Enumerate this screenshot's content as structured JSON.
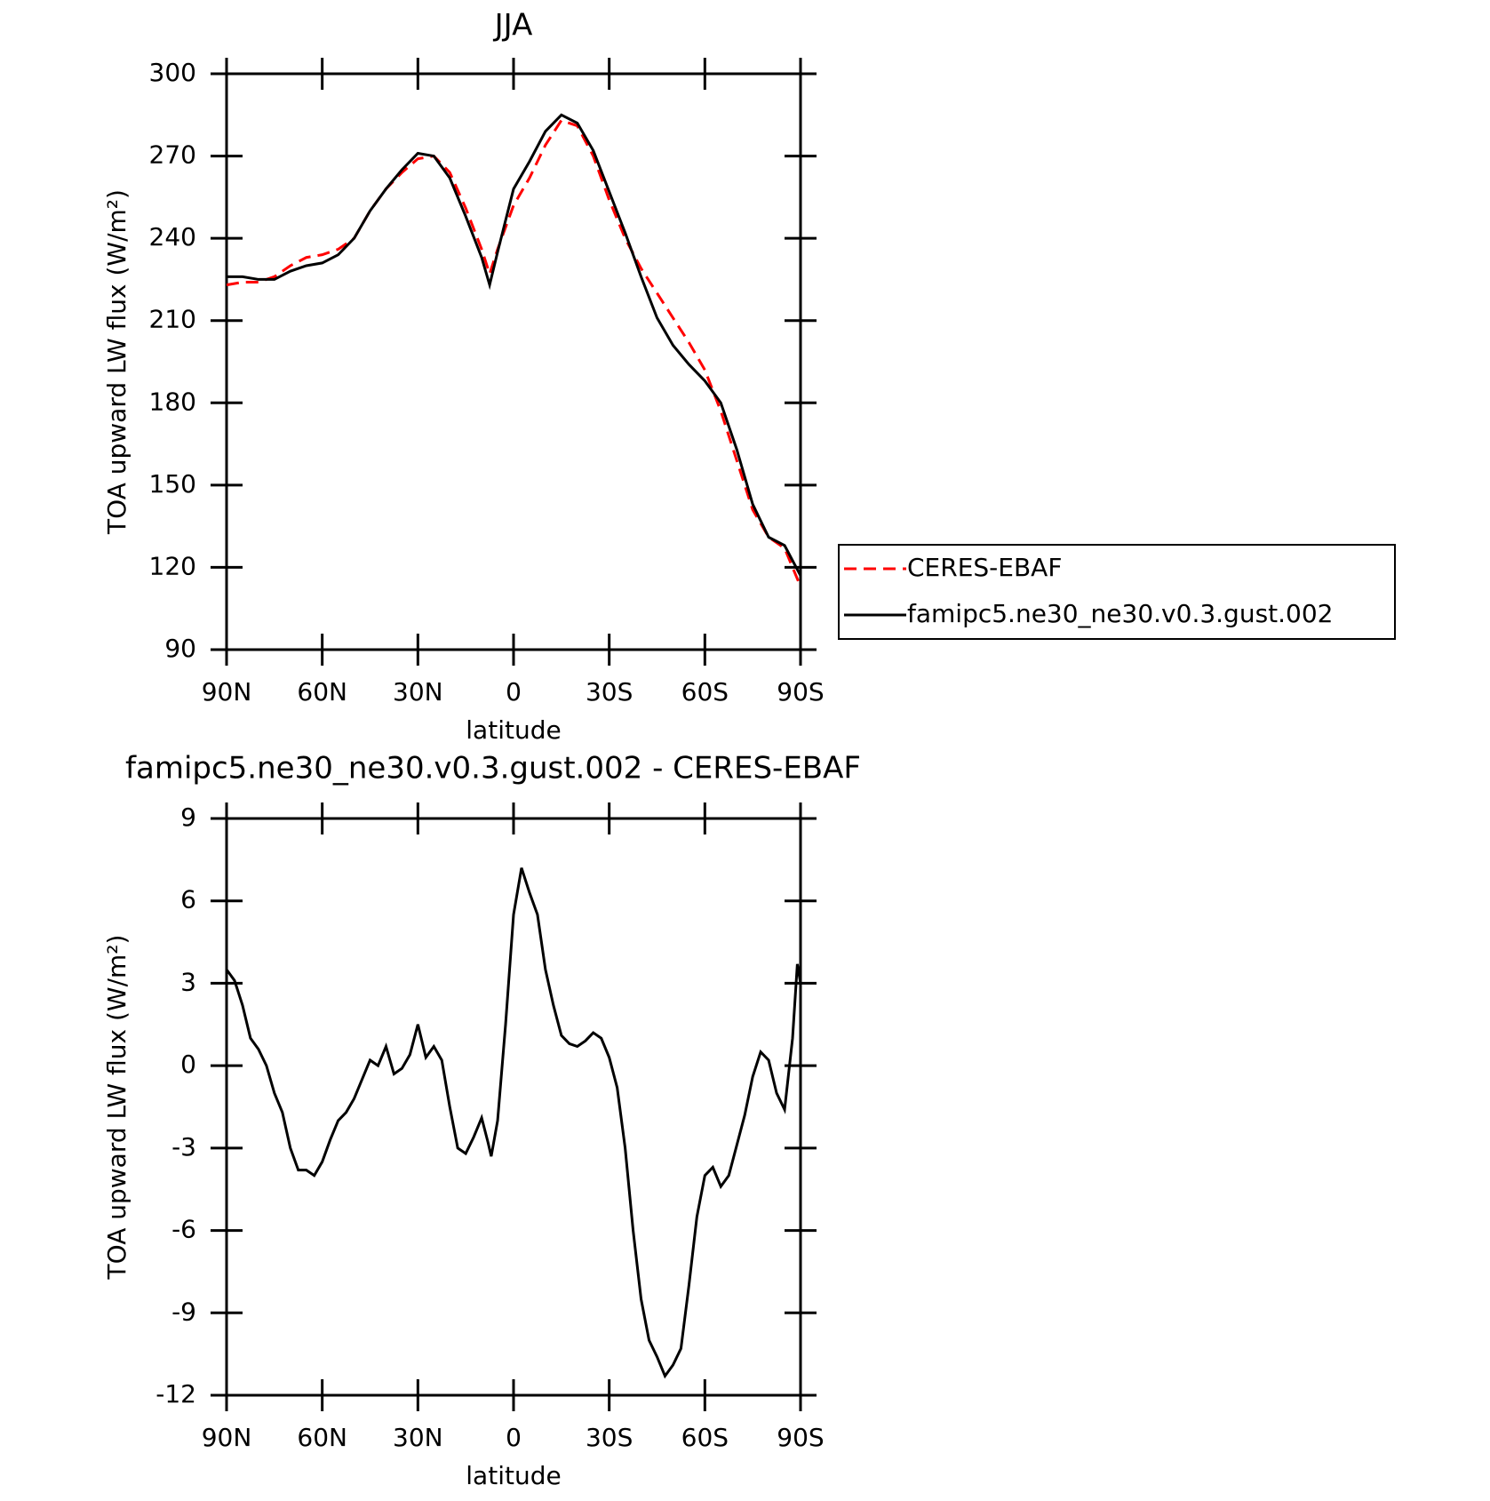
{
  "chart_data": [
    {
      "type": "line",
      "title": "JJA",
      "xlabel": "latitude",
      "ylabel": "TOA upward LW flux (W/m²)",
      "x": [
        90,
        85,
        80,
        75,
        70,
        65,
        60,
        55,
        50,
        45,
        40,
        35,
        30,
        25,
        20,
        15,
        10,
        7.5,
        5,
        0,
        -5,
        -10,
        -15,
        -20,
        -25,
        -30,
        -35,
        -40,
        -45,
        -50,
        -55,
        -60,
        -65,
        -70,
        -75,
        -80,
        -85,
        -90
      ],
      "series": [
        {
          "name": "CERES-EBAF",
          "color": "#ff0000",
          "dash": true,
          "values": [
            223,
            224,
            224,
            226,
            230,
            233,
            234,
            236,
            240,
            250,
            258,
            264,
            269,
            270,
            264,
            251,
            236,
            227,
            236,
            252,
            262,
            274,
            283,
            281,
            270,
            254,
            240,
            229,
            220,
            211,
            202,
            192,
            177,
            159,
            141,
            131,
            127,
            113
          ]
        },
        {
          "name": "famipc5.ne30_ne30.v0.3.gust.002",
          "color": "#000000",
          "dash": false,
          "values": [
            226,
            226,
            225,
            225,
            228,
            230,
            231,
            234,
            240,
            250,
            258,
            265,
            271,
            270,
            262,
            248,
            233,
            223,
            235,
            258,
            268,
            279,
            285,
            282,
            272,
            257,
            242,
            226,
            211,
            201,
            194,
            188,
            180,
            163,
            143,
            131,
            128,
            117
          ]
        }
      ],
      "xlim": [
        90,
        -90
      ],
      "xticks": [
        {
          "value": 90,
          "label": "90N"
        },
        {
          "value": 60,
          "label": "60N"
        },
        {
          "value": 30,
          "label": "30N"
        },
        0,
        {
          "value": -30,
          "label": "30S"
        },
        {
          "value": -60,
          "label": "60S"
        },
        {
          "value": -90,
          "label": "90S"
        }
      ],
      "ylim": [
        90,
        300
      ],
      "yticks": [
        90,
        120,
        150,
        180,
        210,
        240,
        270,
        300
      ],
      "legend": "outside-right"
    },
    {
      "type": "line",
      "title": "famipc5.ne30_ne30.v0.3.gust.002 - CERES-EBAF",
      "xlabel": "latitude",
      "ylabel": "TOA upward LW flux (W/m²)",
      "x": [
        90,
        87.5,
        85,
        82.5,
        80,
        77.5,
        75,
        72.5,
        70,
        67.5,
        65,
        62.5,
        60,
        57.5,
        55,
        52.5,
        50,
        47.5,
        45,
        42.5,
        40,
        37.5,
        35,
        32.5,
        30,
        27.5,
        25,
        22.5,
        20,
        17.5,
        15,
        12.5,
        10,
        8,
        7,
        5,
        2.5,
        0,
        -2.5,
        -5,
        -7.5,
        -10,
        -12.5,
        -15,
        -17.5,
        -20,
        -22.5,
        -25,
        -27.5,
        -30,
        -32.5,
        -35,
        -37.5,
        -40,
        -42.5,
        -45,
        -47.5,
        -50,
        -52.5,
        -55,
        -57.5,
        -60,
        -62.5,
        -65,
        -67.5,
        -70,
        -72.5,
        -75,
        -77.5,
        -80,
        -82.5,
        -85,
        -87.5,
        -89,
        -90
      ],
      "series": [
        {
          "name": "famipc5.ne30_ne30.v0.3.gust.002",
          "color": "#000000",
          "dash": false,
          "values": [
            3.5,
            3.1,
            2.2,
            1.0,
            0.6,
            0,
            -1.0,
            -1.7,
            -3.0,
            -3.8,
            -3.8,
            -4.0,
            -3.5,
            -2.7,
            -2.0,
            -1.7,
            -1.2,
            -0.5,
            0.2,
            0.0,
            0.7,
            -0.3,
            -0.1,
            0.4,
            1.5,
            0.3,
            0.7,
            0.2,
            -1.5,
            -3.0,
            -3.2,
            -2.6,
            -1.9,
            -2.8,
            -3.3,
            -2.0,
            1.5,
            5.5,
            7.2,
            6.3,
            5.5,
            3.5,
            2.2,
            1.1,
            0.8,
            0.7,
            0.9,
            1.2,
            1.0,
            0.3,
            -0.8,
            -3.0,
            -6.0,
            -8.5,
            -10.0,
            -10.6,
            -11.3,
            -10.9,
            -10.3,
            -8.0,
            -5.5,
            -4.0,
            -3.7,
            -4.4,
            -4.0,
            -2.9,
            -1.8,
            -0.4,
            0.5,
            0.2,
            -1.0,
            -1.6,
            1.0,
            3.7,
            3.0
          ]
        }
      ],
      "xlim": [
        90,
        -90
      ],
      "xticks": [
        {
          "value": 90,
          "label": "90N"
        },
        {
          "value": 60,
          "label": "60N"
        },
        {
          "value": 30,
          "label": "30N"
        },
        0,
        {
          "value": -30,
          "label": "30S"
        },
        {
          "value": -60,
          "label": "60S"
        },
        {
          "value": -90,
          "label": "90S"
        }
      ],
      "ylim": [
        -12,
        9
      ],
      "yticks": [
        -12,
        -9,
        -6,
        -3,
        0,
        3,
        6,
        9
      ]
    }
  ]
}
